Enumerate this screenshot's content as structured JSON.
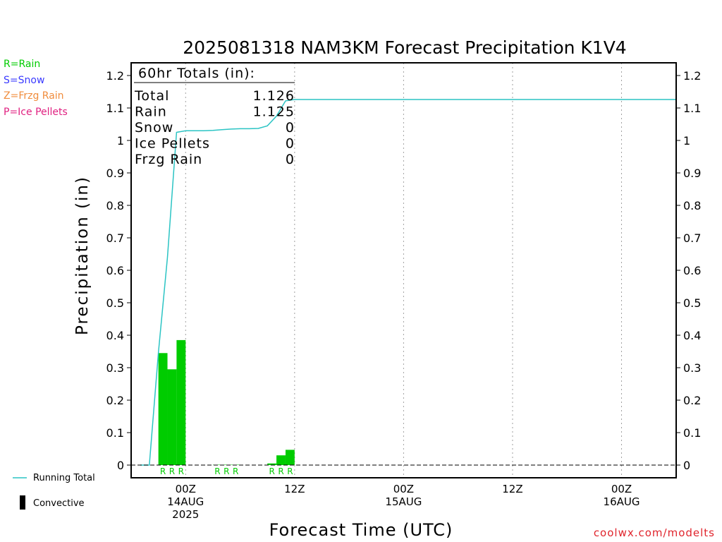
{
  "title": "2025081318 NAM3KM Forecast Precipitation K1V4",
  "legend": [
    {
      "label": "R=Rain",
      "color": "#00cc00"
    },
    {
      "label": "S=Snow",
      "color": "#3a3aff"
    },
    {
      "label": "Z=Frzg Rain",
      "color": "#f08c3c"
    },
    {
      "label": "P=Ice Pellets",
      "color": "#e02080"
    }
  ],
  "running_total_label": "Running Total",
  "convective_label": "Convective",
  "credit": "coolwx.com/modelts",
  "totals": {
    "header": "60hr Totals (in):",
    "rows": [
      {
        "label": "Total",
        "value": "1.126"
      },
      {
        "label": "Rain",
        "value": "1.125"
      },
      {
        "label": "Snow",
        "value": "0"
      },
      {
        "label": "Ice Pellets",
        "value": "0"
      },
      {
        "label": "Frzg Rain",
        "value": "0"
      }
    ]
  },
  "chart_data": {
    "type": "bar",
    "title": "2025081318 NAM3KM Forecast Precipitation K1V4",
    "xlabel": "Forecast Time (UTC)",
    "ylabel": "Precipitation (in)",
    "ylim": [
      0,
      1.2
    ],
    "y_ticks": [
      "0",
      "0.1",
      "0.2",
      "0.3",
      "0.4",
      "0.5",
      "0.6",
      "0.7",
      "0.8",
      "0.9",
      "1",
      "1.1",
      "1.2"
    ],
    "x_range_hours": [
      -6,
      54
    ],
    "x_ticks": [
      {
        "hour": 0,
        "lines": [
          "00Z",
          "14AUG",
          "2025"
        ]
      },
      {
        "hour": 12,
        "lines": [
          "12Z"
        ]
      },
      {
        "hour": 24,
        "lines": [
          "00Z",
          "15AUG"
        ]
      },
      {
        "hour": 36,
        "lines": [
          "12Z"
        ]
      },
      {
        "hour": 48,
        "lines": [
          "00Z",
          "16AUG"
        ]
      }
    ],
    "rain_bars": [
      {
        "start": -3,
        "end": -2,
        "value": 0.345
      },
      {
        "start": -2,
        "end": -1,
        "value": 0.295
      },
      {
        "start": -1,
        "end": 0,
        "value": 0.385
      },
      {
        "start": 3,
        "end": 4,
        "value": 0.001
      },
      {
        "start": 4,
        "end": 5,
        "value": 0.001
      },
      {
        "start": 5,
        "end": 6,
        "value": 0.001
      },
      {
        "start": 9,
        "end": 10,
        "value": 0.005
      },
      {
        "start": 10,
        "end": 11,
        "value": 0.03
      },
      {
        "start": 11,
        "end": 12,
        "value": 0.047
      }
    ],
    "ptype_markers": [
      {
        "hour": -2.5,
        "label": "R"
      },
      {
        "hour": -1.5,
        "label": "R"
      },
      {
        "hour": -0.5,
        "label": "R"
      },
      {
        "hour": 3.5,
        "label": "R"
      },
      {
        "hour": 4.5,
        "label": "R"
      },
      {
        "hour": 5.5,
        "label": "R"
      },
      {
        "hour": 9.5,
        "label": "R"
      },
      {
        "hour": 10.5,
        "label": "R"
      },
      {
        "hour": 11.5,
        "label": "R"
      }
    ],
    "running_total": {
      "name": "Running Total",
      "hours": [
        -5,
        -4,
        -3,
        -2,
        -1,
        0,
        1,
        2,
        3,
        4,
        5,
        6,
        7,
        8,
        9,
        10,
        11,
        12,
        13,
        24,
        36,
        48,
        54
      ],
      "values": [
        0,
        0,
        0.345,
        0.64,
        1.025,
        1.03,
        1.03,
        1.03,
        1.031,
        1.033,
        1.035,
        1.036,
        1.036,
        1.037,
        1.045,
        1.075,
        1.122,
        1.126,
        1.126,
        1.126,
        1.126,
        1.126,
        1.126
      ]
    }
  }
}
